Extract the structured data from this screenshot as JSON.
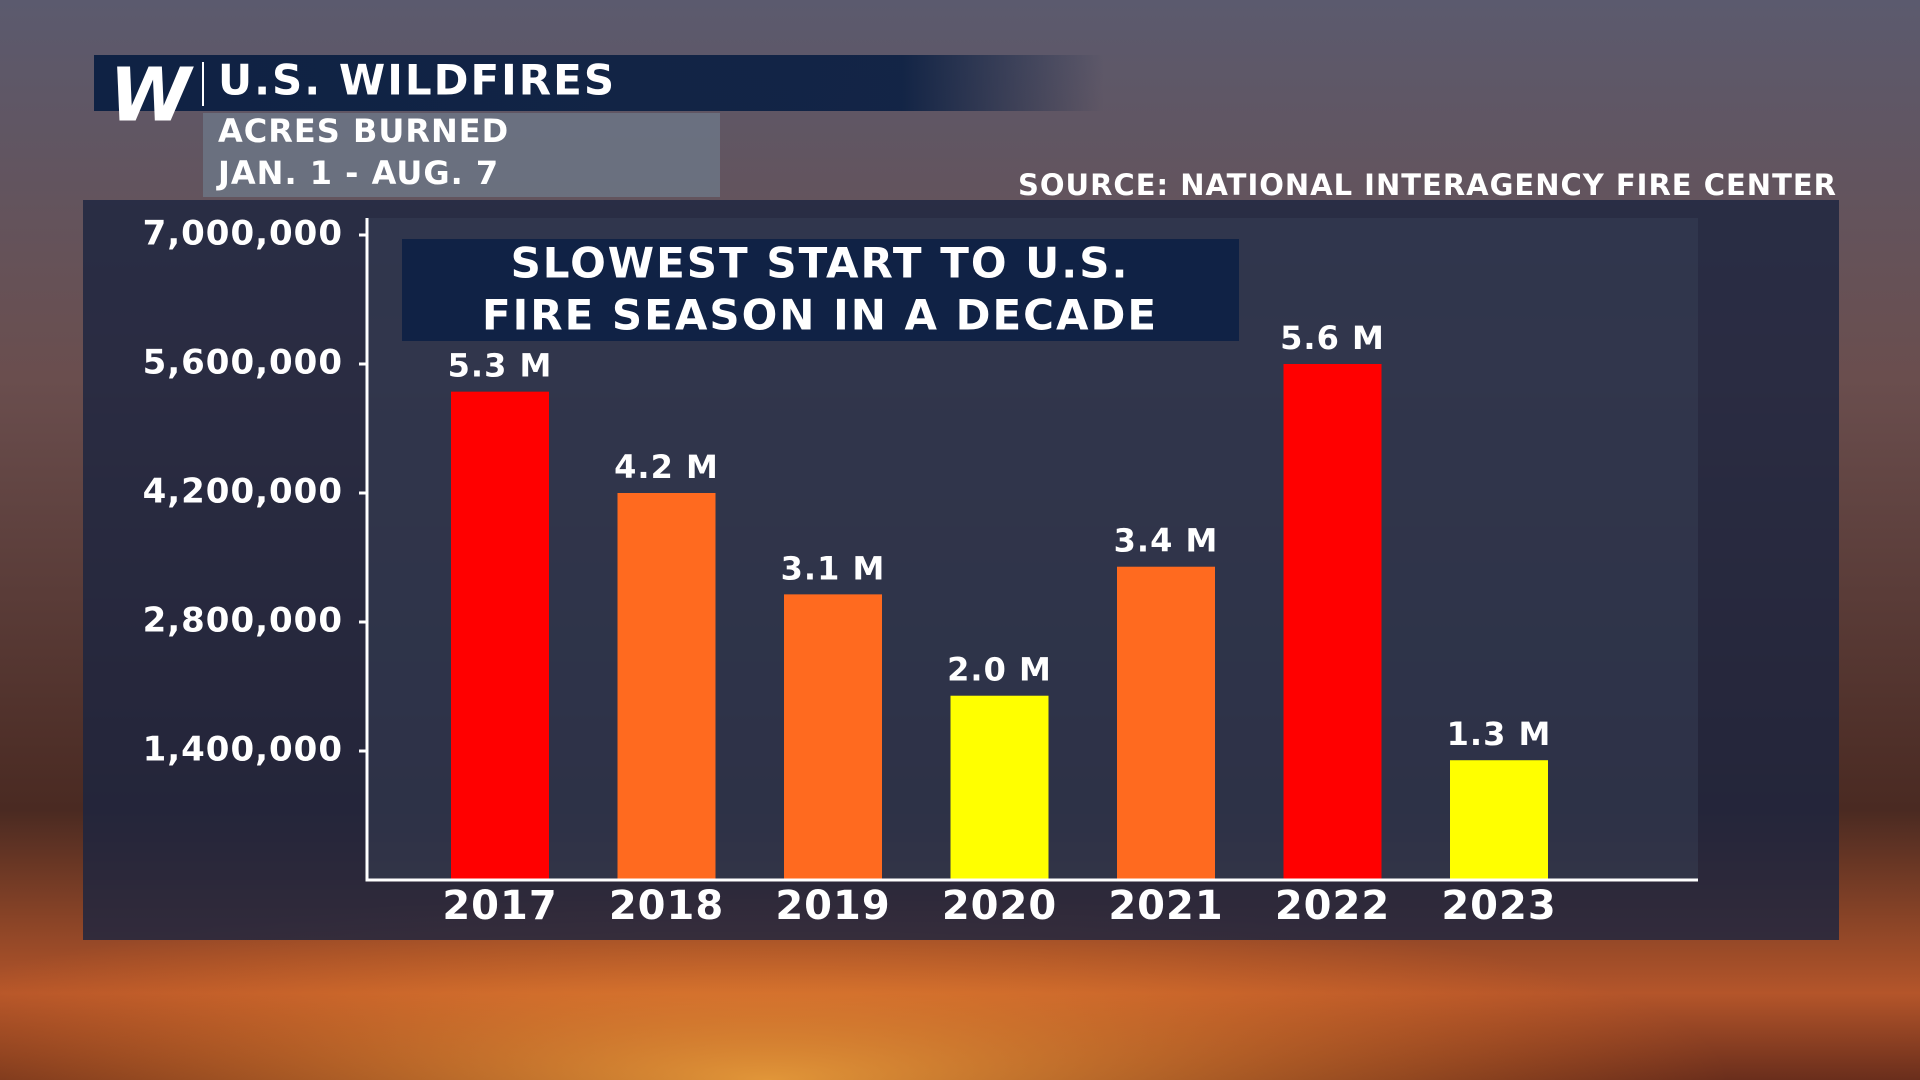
{
  "logo": "W",
  "chart_data": {
    "type": "bar",
    "title": "U.S. WILDFIRES",
    "subtitle": [
      "ACRES BURNED",
      "JAN. 1 - AUG. 7"
    ],
    "source": "SOURCE: NATIONAL INTERAGENCY FIRE CENTER",
    "annotation": [
      "SLOWEST START TO U.S.",
      "FIRE SEASON IN A DECADE"
    ],
    "categories": [
      "2017",
      "2018",
      "2019",
      "2020",
      "2021",
      "2022",
      "2023"
    ],
    "values": [
      5300000,
      4200000,
      3100000,
      2000000,
      3400000,
      5600000,
      1300000
    ],
    "value_labels": [
      "5.3 M",
      "4.2 M",
      "3.1 M",
      "2.0 M",
      "3.4 M",
      "5.6 M",
      "1.3 M"
    ],
    "colors": [
      "#ff0000",
      "#ff6a1f",
      "#ff6a1f",
      "#ffff00",
      "#ff6a1f",
      "#ff0000",
      "#ffff00"
    ],
    "ylim": [
      0,
      7000000
    ],
    "yticks": [
      {
        "value": 1400000,
        "label": "1,400,000"
      },
      {
        "value": 2800000,
        "label": "2,800,000"
      },
      {
        "value": 4200000,
        "label": "4,200,000"
      },
      {
        "value": 5600000,
        "label": "5,600,000"
      },
      {
        "value": 7000000,
        "label": "7,000,000"
      }
    ],
    "grid": false
  }
}
